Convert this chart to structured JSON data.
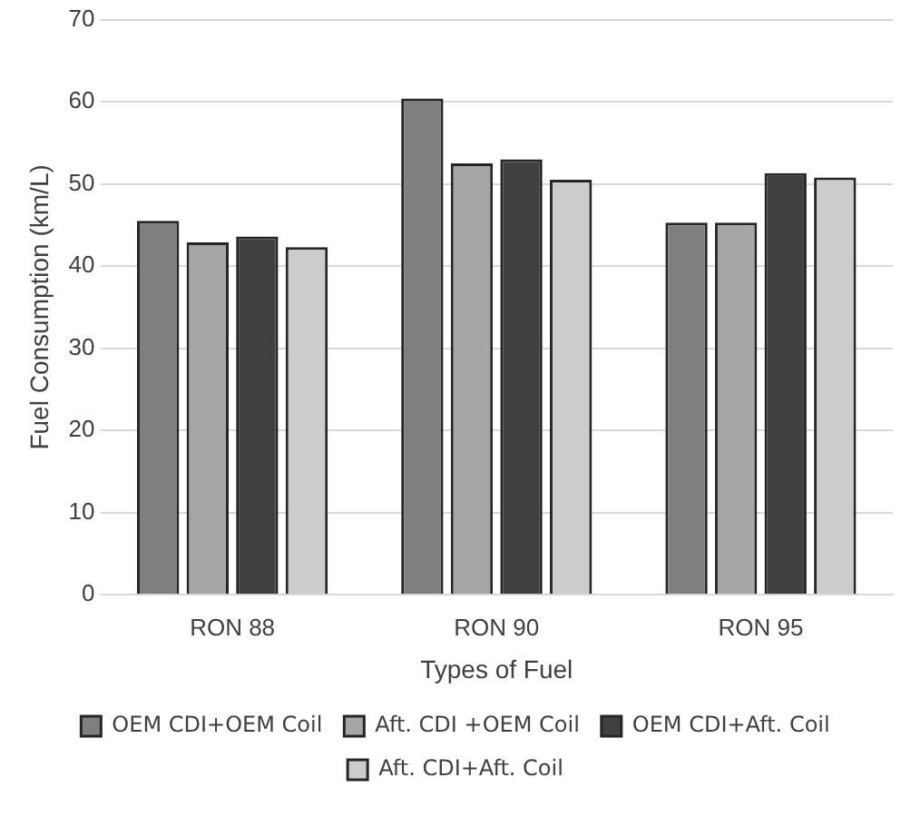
{
  "chart_data": {
    "type": "bar",
    "xlabel": "Types of Fuel",
    "ylabel": "Fuel Consumption (km/L)",
    "categories": [
      "RON 88",
      "RON 90",
      "RON 95"
    ],
    "series": [
      {
        "name": "OEM CDI+OEM Coil",
        "color": "#7f7f7f",
        "values": [
          45.5,
          60.4,
          45.3
        ]
      },
      {
        "name": "Aft. CDI +OEM Coil",
        "color": "#a6a6a6",
        "values": [
          42.9,
          52.5,
          45.3
        ]
      },
      {
        "name": "OEM CDI+Aft. Coil",
        "color": "#404040",
        "values": [
          43.6,
          53.0,
          51.3
        ]
      },
      {
        "name": "Aft. CDI+Aft. Coil",
        "color": "#cccccc",
        "values": [
          42.3,
          50.5,
          50.8
        ]
      }
    ],
    "ylim": [
      0,
      70
    ],
    "yticks": [
      0,
      10,
      20,
      30,
      40,
      50,
      60,
      70
    ],
    "grid": "y",
    "legend": "bottom"
  }
}
